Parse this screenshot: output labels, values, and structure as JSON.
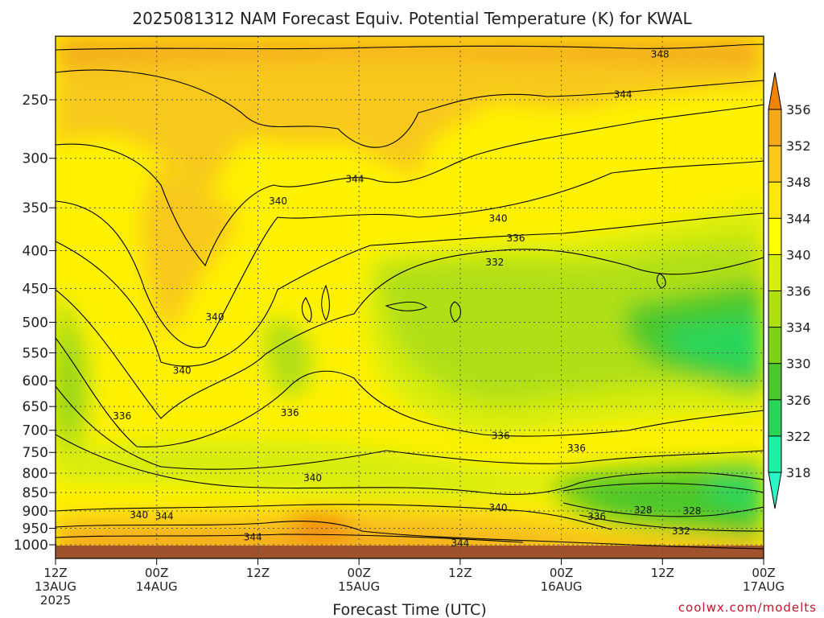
{
  "chart_data": {
    "type": "heatmap",
    "title": "2025081312 NAM Forecast Equiv. Potential Temperature (K) for KWAL",
    "xlabel": "Forecast Time (UTC)",
    "ylabel": "",
    "credit": "coolwx.com/modelts",
    "y_axis": {
      "scale": "log-pressure",
      "inverted": true,
      "ticks": [
        "250",
        "300",
        "350",
        "400",
        "450",
        "500",
        "550",
        "600",
        "650",
        "700",
        "750",
        "800",
        "850",
        "900",
        "950",
        "1000"
      ]
    },
    "x_axis": {
      "ticks": [
        {
          "hour": 0,
          "line1": "12Z",
          "line2": "13AUG",
          "line3": "2025"
        },
        {
          "hour": 12,
          "line1": "00Z",
          "line2": "14AUG",
          "line3": ""
        },
        {
          "hour": 24,
          "line1": "12Z",
          "line2": "",
          "line3": ""
        },
        {
          "hour": 36,
          "line1": "00Z",
          "line2": "15AUG",
          "line3": ""
        },
        {
          "hour": 48,
          "line1": "12Z",
          "line2": "",
          "line3": ""
        },
        {
          "hour": 60,
          "line1": "00Z",
          "line2": "16AUG",
          "line3": ""
        },
        {
          "hour": 72,
          "line1": "12Z",
          "line2": "",
          "line3": ""
        },
        {
          "hour": 84,
          "line1": "00Z",
          "line2": "17AUG",
          "line3": ""
        }
      ]
    },
    "colorbar": {
      "labels": [
        "356",
        "352",
        "348",
        "344",
        "340",
        "336",
        "334",
        "330",
        "326",
        "322",
        "318"
      ],
      "colors": [
        "#f0840a",
        "#f5a81a",
        "#f8c81c",
        "#fbe60e",
        "#ffff00",
        "#d6ed10",
        "#b0df14",
        "#7ed018",
        "#4bc82c",
        "#2ad65a",
        "#1ef0a6",
        "#28f8c8"
      ]
    },
    "contour_labels": [
      {
        "text": "348",
        "hour": 71.7,
        "p": 217
      },
      {
        "text": "344",
        "hour": 67.3,
        "p": 246
      },
      {
        "text": "344",
        "hour": 35.5,
        "p": 320
      },
      {
        "text": "340",
        "hour": 26.4,
        "p": 343
      },
      {
        "text": "340",
        "hour": 52.5,
        "p": 362
      },
      {
        "text": "336",
        "hour": 54.6,
        "p": 385
      },
      {
        "text": "332",
        "hour": 52.1,
        "p": 415
      },
      {
        "text": "340",
        "hour": 18.9,
        "p": 492
      },
      {
        "text": "340",
        "hour": 15.0,
        "p": 581
      },
      {
        "text": "336",
        "hour": 7.9,
        "p": 670
      },
      {
        "text": "336",
        "hour": 27.8,
        "p": 663
      },
      {
        "text": "336",
        "hour": 52.8,
        "p": 712
      },
      {
        "text": "336",
        "hour": 61.8,
        "p": 740
      },
      {
        "text": "340",
        "hour": 30.5,
        "p": 812
      },
      {
        "text": "340",
        "hour": 9.9,
        "p": 911
      },
      {
        "text": "344",
        "hour": 12.9,
        "p": 915
      },
      {
        "text": "340",
        "hour": 52.5,
        "p": 891
      },
      {
        "text": "328",
        "hour": 69.7,
        "p": 898
      },
      {
        "text": "328",
        "hour": 75.5,
        "p": 900
      },
      {
        "text": "336",
        "hour": 64.2,
        "p": 916
      },
      {
        "text": "332",
        "hour": 74.2,
        "p": 958
      },
      {
        "text": "344",
        "hour": 23.4,
        "p": 977
      },
      {
        "text": "344",
        "hour": 48.0,
        "p": 995
      }
    ],
    "grid": true,
    "legend": "right"
  }
}
